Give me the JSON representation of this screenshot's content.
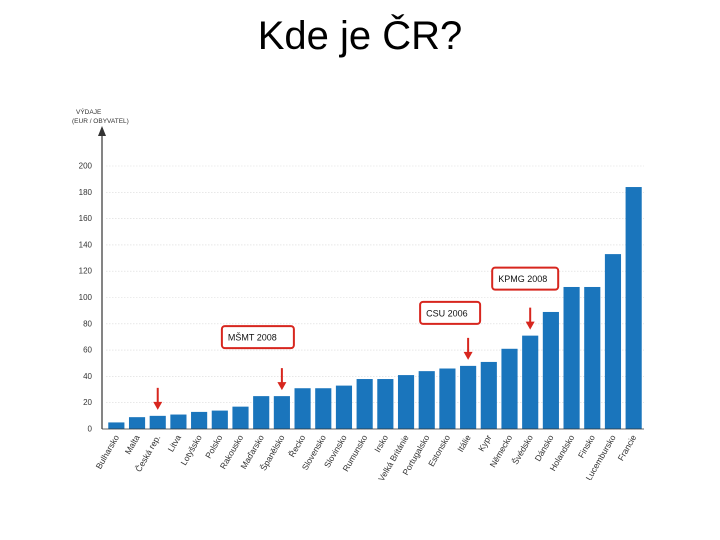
{
  "slide": {
    "title": "Kde je ČR?"
  },
  "chart_data": {
    "type": "bar",
    "ylabel_line1": "VÝDAJE",
    "ylabel_line2": "(EUR / OBYVATEL)",
    "ylim": [
      0,
      200
    ],
    "yticks": [
      0,
      20,
      40,
      60,
      80,
      100,
      120,
      140,
      160,
      180,
      200
    ],
    "grid": true,
    "bar_color": "#1a75bc",
    "categories": [
      "Bulharsko",
      "Malta",
      "Česká rep.",
      "Litva",
      "Lotyšsko",
      "Polsko",
      "Rakousko",
      "Maďarsko",
      "Španělsko",
      "Řecko",
      "Slovensko",
      "Slovinsko",
      "Rumunsko",
      "Irsko",
      "Velká Británie",
      "Portugalsko",
      "Estonsko",
      "Itálie",
      "Kypr",
      "Německo",
      "Švédsko",
      "Dánsko",
      "Holandsko",
      "Finsko",
      "Lucembursko",
      "Francie"
    ],
    "values": [
      5,
      9,
      10,
      11,
      13,
      14,
      17,
      25,
      25,
      31,
      31,
      33,
      38,
      38,
      41,
      44,
      46,
      48,
      51,
      61,
      71,
      89,
      108,
      108,
      133,
      184
    ],
    "annotations": [
      {
        "label": "MŠMT 2008",
        "category_index": 8
      },
      {
        "label": "CSU 2006",
        "category_index": 17
      },
      {
        "label": "KPMG 2008",
        "category_index": 20
      }
    ],
    "highlight_arrow_category_index": 2,
    "annotation_color": "#d7261e"
  }
}
